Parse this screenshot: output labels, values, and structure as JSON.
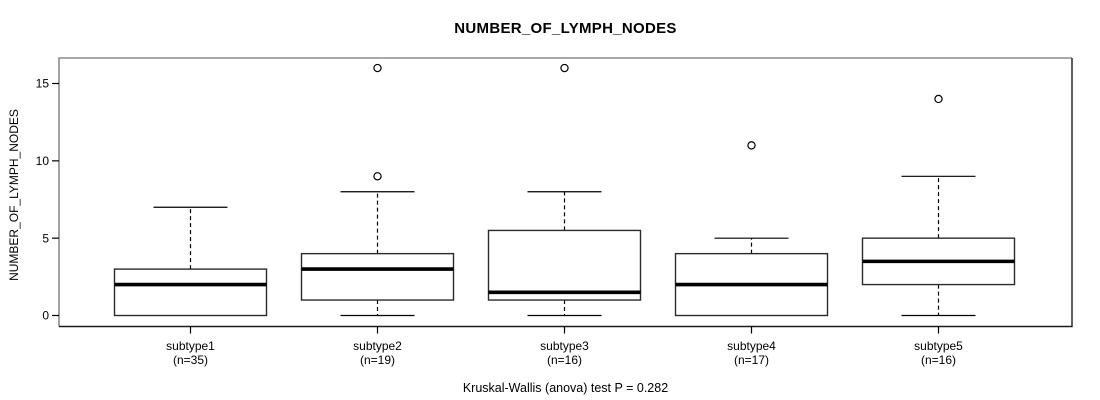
{
  "chart_data": {
    "type": "boxplot",
    "title": "NUMBER_OF_LYMPH_NODES",
    "ylabel": "NUMBER_OF_LYMPH_NODES",
    "xlabel": "",
    "caption": "Kruskal-Wallis (anova) test P = 0.282",
    "p_value": 0.282,
    "ylim": [
      0,
      16
    ],
    "yticks": [
      0,
      5,
      10,
      15
    ],
    "grid": false,
    "legend": "none",
    "groups": [
      {
        "label": "subtype1",
        "n_label": "(n=35)",
        "n": 35,
        "whisker_low": 0,
        "q1": 0,
        "median": 2,
        "q3": 3,
        "whisker_high": 7,
        "outliers": []
      },
      {
        "label": "subtype2",
        "n_label": "(n=19)",
        "n": 19,
        "whisker_low": 0,
        "q1": 1,
        "median": 3,
        "q3": 4,
        "whisker_high": 8,
        "outliers": [
          9,
          16
        ]
      },
      {
        "label": "subtype3",
        "n_label": "(n=16)",
        "n": 16,
        "whisker_low": 0,
        "q1": 1,
        "median": 1.5,
        "q3": 5.5,
        "whisker_high": 8,
        "outliers": [
          16
        ]
      },
      {
        "label": "subtype4",
        "n_label": "(n=17)",
        "n": 17,
        "whisker_low": 0,
        "q1": 0,
        "median": 2,
        "q3": 4,
        "whisker_high": 5,
        "outliers": [
          11
        ]
      },
      {
        "label": "subtype5",
        "n_label": "(n=16)",
        "n": 16,
        "whisker_low": 0,
        "q1": 2,
        "median": 3.5,
        "q3": 5,
        "whisker_high": 9,
        "outliers": [
          14
        ]
      }
    ],
    "colors": {
      "background": "#ffffff",
      "line": "#000000",
      "box_fill": "#ffffff",
      "box_stroke": "#2b2b2b",
      "median": "#000000",
      "frame_light": "#8c8c8c",
      "frame_dark": "#1c1c1c",
      "text": "#000000"
    }
  }
}
